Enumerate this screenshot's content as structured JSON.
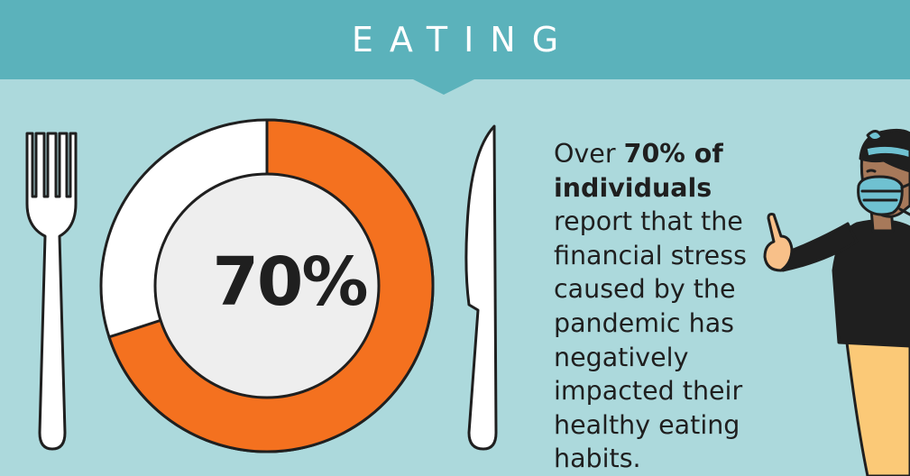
{
  "header": {
    "title": "EATING"
  },
  "plate_chart": {
    "percent_label": "70%",
    "value_percent": 70,
    "colors": {
      "filled": "#f4711f",
      "remaining": "#ffffff",
      "center": "#eeeeee",
      "outline": "#1f1f1f"
    }
  },
  "description": {
    "prefix": "Over ",
    "highlight": "70% of individuals",
    "suffix": " report that the financial stress caused by the pandemic has negatively impacted their healthy eating habits."
  },
  "colors": {
    "background": "#acd9dc",
    "header": "#5bb2bb",
    "accent": "#f4711f"
  }
}
